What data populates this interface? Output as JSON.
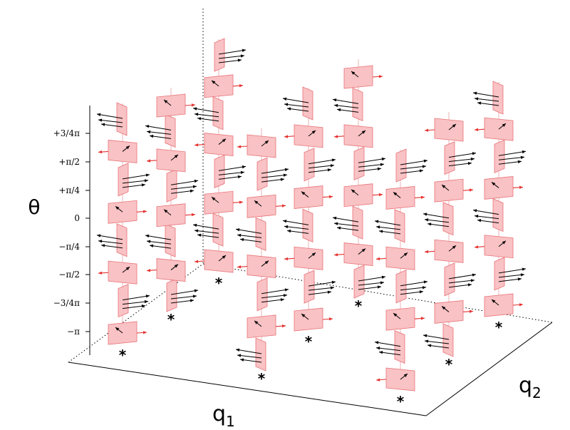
{
  "axes": {
    "theta_label": "θ",
    "q1_label": "q",
    "q1_sub": "1",
    "q2_label": "q",
    "q2_sub": "2",
    "theta_ticks": [
      "−π",
      "−3/4π",
      "−π/2",
      "−π/4",
      "0",
      "+π/4",
      "+π/2",
      "+3/4π"
    ]
  },
  "marker_symbol": "*",
  "colors": {
    "panel_fill": "#f9c2c4",
    "panel_edge": "#e87378",
    "arrow_black": "#000000",
    "arrow_red": "#e53030"
  }
}
